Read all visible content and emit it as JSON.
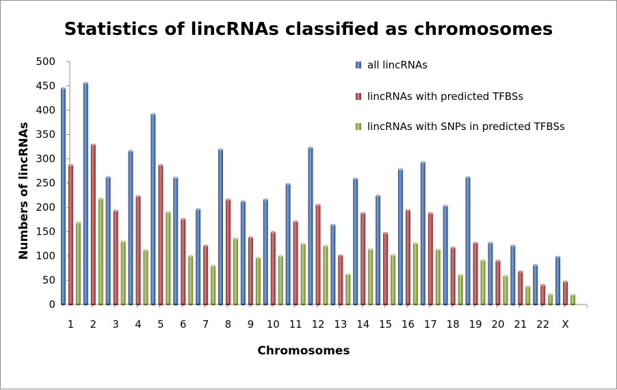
{
  "chart_data": {
    "type": "bar",
    "title": "Statistics of lincRNAs classified as chromosomes",
    "xlabel": "Chromosomes",
    "ylabel": "Numbers of lincRNAs",
    "ylim": [
      0,
      500
    ],
    "yticks": [
      "0",
      "50",
      "100",
      "150",
      "200",
      "250",
      "300",
      "350",
      "400",
      "450",
      "500"
    ],
    "categories": [
      "1",
      "2",
      "3",
      "4",
      "5",
      "6",
      "7",
      "8",
      "9",
      "10",
      "11",
      "12",
      "13",
      "14",
      "15",
      "16",
      "17",
      "18",
      "19",
      "20",
      "21",
      "22",
      "X"
    ],
    "series": [
      {
        "name": "all lincRNAs",
        "color": "#3a6fc4",
        "values": [
          445,
          456,
          262,
          316,
          392,
          261,
          196,
          319,
          212,
          216,
          248,
          323,
          164,
          259,
          224,
          278,
          293,
          203,
          262,
          127,
          121,
          81,
          98
        ]
      },
      {
        "name": "lincRNAs with predicted TFBSs",
        "color": "#c43a3a",
        "values": [
          287,
          329,
          193,
          223,
          287,
          176,
          121,
          216,
          138,
          149,
          171,
          205,
          101,
          188,
          147,
          194,
          188,
          117,
          127,
          90,
          68,
          40,
          47
        ]
      },
      {
        "name": "lincRNAs with SNPs in predicted TFBSs",
        "color": "#9bbb3b",
        "values": [
          169,
          218,
          130,
          112,
          190,
          100,
          80,
          136,
          96,
          100,
          125,
          121,
          62,
          114,
          102,
          126,
          113,
          61,
          91,
          59,
          37,
          21,
          20
        ]
      }
    ],
    "grid": false,
    "legend_position": "top-right"
  }
}
